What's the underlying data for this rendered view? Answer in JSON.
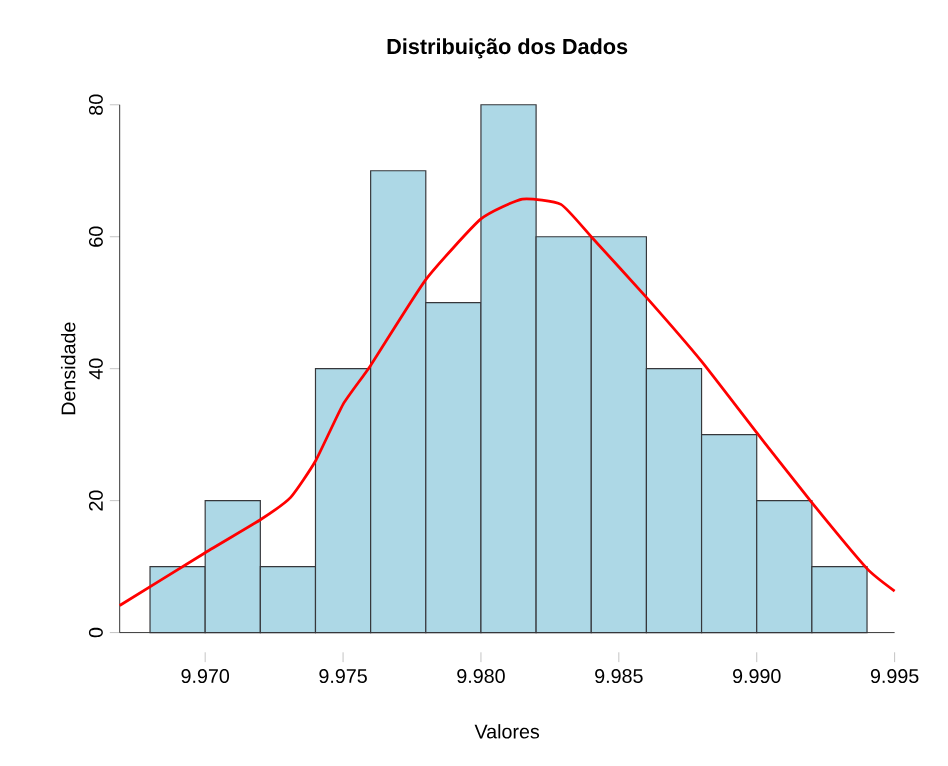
{
  "chart_data": {
    "type": "histogram",
    "title": "Distribuição dos Dados",
    "xlabel": "Valores",
    "ylabel": "Densidade",
    "series": [
      {
        "bins": [
          9.968,
          9.97,
          9.972,
          9.974,
          9.976,
          9.978,
          9.98,
          9.982,
          9.984,
          9.986,
          9.988,
          9.99,
          9.992,
          9.994
        ],
        "values": [
          10,
          20,
          10,
          40,
          70,
          50,
          80,
          60,
          60,
          40,
          30,
          20,
          10
        ],
        "color": "#add8e6"
      },
      {
        "type": "line",
        "x": [
          9.9669,
          9.97,
          9.972,
          9.9731,
          9.974,
          9.975,
          9.976,
          9.978,
          9.98,
          9.9815,
          9.9829,
          9.984,
          9.986,
          9.988,
          9.99,
          9.992,
          9.994,
          9.995
        ],
        "values": [
          4.1,
          12.1,
          17.1,
          20.5,
          26,
          34.6,
          40.5,
          53.5,
          62.7,
          65.7,
          64.9,
          60,
          50.8,
          41.1,
          30.3,
          19.7,
          9.7,
          6.3
        ],
        "color": "#ff0000"
      }
    ],
    "xlim": [
      9.9669,
      9.995
    ],
    "ylim": [
      0,
      80
    ],
    "xticks": [
      {
        "value": 9.97,
        "label": "9.970"
      },
      {
        "value": 9.975,
        "label": "9.975"
      },
      {
        "value": 9.98,
        "label": "9.980"
      },
      {
        "value": 9.985,
        "label": "9.985"
      },
      {
        "value": 9.99,
        "label": "9.990"
      },
      {
        "value": 9.995,
        "label": "9.995"
      }
    ],
    "yticks": [
      0,
      20,
      40,
      60,
      80
    ],
    "grid": false
  }
}
